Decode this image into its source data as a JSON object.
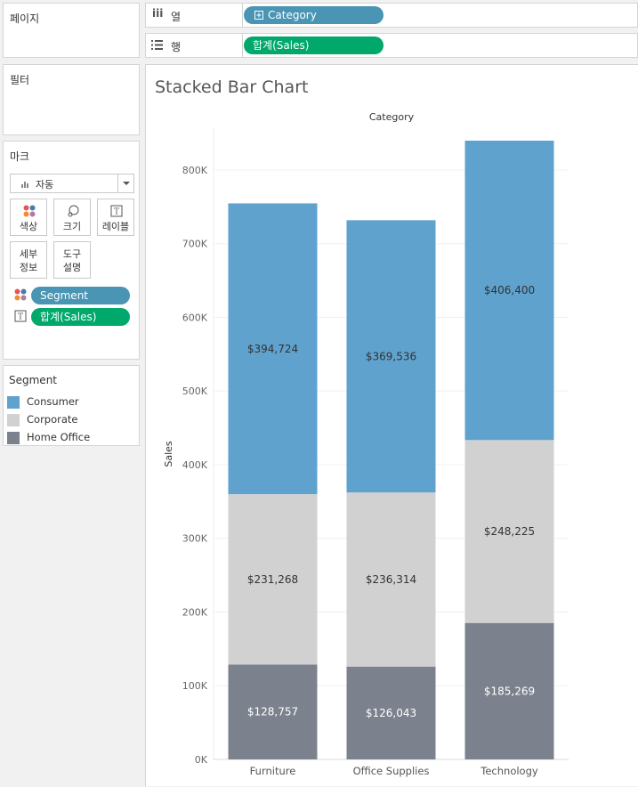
{
  "panels": {
    "pages": "페이지",
    "filters": "필터",
    "marks": "마크"
  },
  "marks": {
    "type": "자동",
    "buttons": {
      "color": "색상",
      "size": "크기",
      "label": "레이블",
      "detail": [
        "세부",
        "정보"
      ],
      "tooltip": [
        "도구",
        "설명"
      ]
    },
    "pills": [
      {
        "field": "Segment",
        "encoding": "color-icon"
      },
      {
        "field": "합계(Sales)",
        "encoding": "text-icon"
      }
    ]
  },
  "legend": {
    "title": "Segment",
    "items": [
      {
        "label": "Consumer",
        "color": "#5fa2ce"
      },
      {
        "label": "Corporate",
        "color": "#d1d1d1"
      },
      {
        "label": "Home Office",
        "color": "#7c828d"
      }
    ]
  },
  "shelves": {
    "columns": {
      "label": "열",
      "pill": "Category"
    },
    "rows": {
      "label": "행",
      "pill": "합계(Sales)"
    }
  },
  "view": {
    "title": "Stacked Bar Chart"
  },
  "chart_data": {
    "type": "bar",
    "stacked": true,
    "title": "Stacked Bar Chart",
    "column_header": "Category",
    "ylabel": "Sales",
    "xlabel": "",
    "categories": [
      "Furniture",
      "Office Supplies",
      "Technology"
    ],
    "series": [
      {
        "name": "Home Office",
        "color": "#7c828d",
        "values": [
          128757,
          126043,
          185269
        ],
        "labels": [
          "$128,757",
          "$126,043",
          "$185,269"
        ],
        "label_color": "#ffffff"
      },
      {
        "name": "Corporate",
        "color": "#d1d1d1",
        "values": [
          231268,
          236314,
          248225
        ],
        "labels": [
          "$231,268",
          "$236,314",
          "$248,225"
        ],
        "label_color": "#333333"
      },
      {
        "name": "Consumer",
        "color": "#5fa2ce",
        "values": [
          394724,
          369536,
          406400
        ],
        "labels": [
          "$394,724",
          "$369,536",
          "$406,400"
        ],
        "label_color": "#333333"
      }
    ],
    "ylim": [
      0,
      858000
    ],
    "yticks": [
      0,
      100000,
      200000,
      300000,
      400000,
      500000,
      600000,
      700000,
      800000
    ],
    "ytick_labels": [
      "0K",
      "100K",
      "200K",
      "300K",
      "400K",
      "500K",
      "600K",
      "700K",
      "800K"
    ],
    "grid": true,
    "legend": "separate-panel"
  }
}
